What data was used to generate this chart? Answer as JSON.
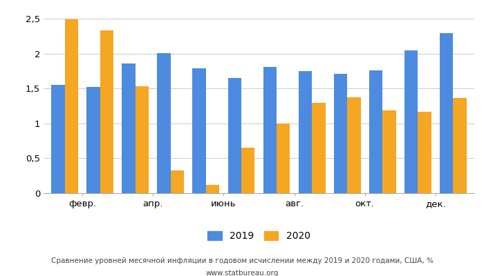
{
  "x_labels": [
    "февр.",
    "апр.",
    "июнь",
    "авг.",
    "окт.",
    "дек."
  ],
  "values_2019": [
    1.55,
    1.52,
    1.86,
    2.01,
    1.79,
    1.65,
    1.81,
    1.75,
    1.71,
    1.76,
    2.05,
    2.29
  ],
  "values_2020": [
    2.49,
    2.33,
    1.53,
    0.33,
    0.12,
    0.65,
    1.0,
    1.3,
    1.37,
    1.19,
    1.17,
    1.36
  ],
  "color_2019": "#4c8be0",
  "color_2020": "#f5a623",
  "ylabel_ticks": [
    0,
    0.5,
    1.0,
    1.5,
    2.0,
    2.5
  ],
  "ylabel_labels": [
    "0",
    "0,5",
    "1",
    "1,5",
    "2",
    "2,5"
  ],
  "ylim": [
    0,
    2.65
  ],
  "title_line1": "Сравнение уровней месячной инфляции в годовом исчислении между 2019 и 2020 годами, США, %",
  "title_line2": "www.statbureau.org",
  "legend_2019": "2019",
  "legend_2020": "2020",
  "bar_width": 0.38,
  "bg_color": "#ffffff",
  "grid_color": "#d0d0d0"
}
